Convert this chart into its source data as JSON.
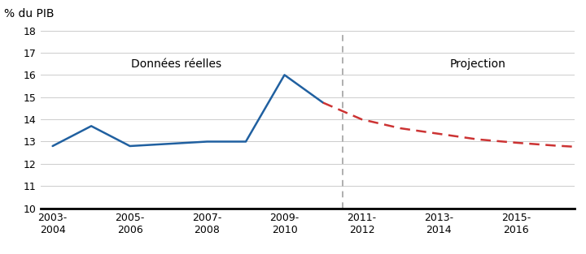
{
  "actual_x": [
    0,
    1,
    2,
    3,
    4,
    5,
    6,
    7
  ],
  "actual_y": [
    12.8,
    13.7,
    12.8,
    12.9,
    13.0,
    13.0,
    16.0,
    14.75
  ],
  "projection_x": [
    7,
    8,
    9,
    10,
    11,
    12,
    13,
    14
  ],
  "projection_y": [
    14.75,
    14.0,
    13.6,
    13.35,
    13.1,
    12.95,
    12.82,
    12.72
  ],
  "divider_x": 7.5,
  "ylabel": "% du PIB",
  "ylim": [
    10,
    18
  ],
  "yticks": [
    10,
    11,
    12,
    13,
    14,
    15,
    16,
    17,
    18
  ],
  "actual_color": "#2060A0",
  "projection_color": "#CC3333",
  "divider_color": "#999999",
  "label_actual": "Données réelles",
  "label_projection": "Projection",
  "bg_color": "#ffffff",
  "grid_color": "#cccccc",
  "line_width": 1.8,
  "font_size_annotation": 10,
  "font_size_tick": 9,
  "font_size_ylabel": 10,
  "xtick_positions": [
    0,
    2,
    4,
    6,
    8,
    10,
    12
  ],
  "xtick_labels": [
    "2003-\n2004",
    "2005-\n2006",
    "2007-\n2008",
    "2009-\n2010",
    "2011-\n2012",
    "2013-\n2014",
    "2015-\n2016"
  ]
}
